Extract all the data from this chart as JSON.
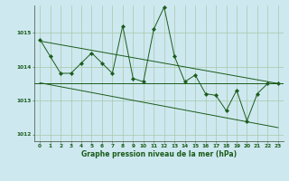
{
  "title": "Graphe pression niveau de la mer (hPa)",
  "background_color": "#cee8f0",
  "grid_color": "#a8c8a8",
  "line_color": "#1a5c1a",
  "spine_color": "#556655",
  "x_min": -0.5,
  "x_max": 23.5,
  "y_min": 1011.8,
  "y_max": 1015.8,
  "yticks": [
    1012,
    1013,
    1014,
    1015
  ],
  "xticks": [
    0,
    1,
    2,
    3,
    4,
    5,
    6,
    7,
    8,
    9,
    10,
    11,
    12,
    13,
    14,
    15,
    16,
    17,
    18,
    19,
    20,
    21,
    22,
    23
  ],
  "series1_x": [
    0,
    1,
    2,
    3,
    4,
    5,
    6,
    7,
    8,
    9,
    10,
    11,
    12,
    13,
    14,
    15,
    16,
    17,
    18,
    19,
    20,
    21,
    22,
    23
  ],
  "series1_y": [
    1014.8,
    1014.3,
    1013.8,
    1013.8,
    1014.1,
    1014.4,
    1014.1,
    1013.8,
    1015.2,
    1013.65,
    1013.55,
    1015.1,
    1015.75,
    1014.3,
    1013.55,
    1013.75,
    1013.2,
    1013.15,
    1012.7,
    1013.3,
    1012.4,
    1013.2,
    1013.5,
    1013.5
  ],
  "flat_line_y": 1013.52,
  "trend1_x0": 0,
  "trend1_y0": 1014.75,
  "trend1_x1": 23,
  "trend1_y1": 1013.5,
  "trend2_x0": 0,
  "trend2_y0": 1013.52,
  "trend2_x1": 23,
  "trend2_y1": 1012.2,
  "marker": "D",
  "markersize": 2.2,
  "linewidth": 0.7,
  "tick_fontsize": 4.2,
  "ylabel_fontsize": 4.2,
  "xlabel_fontsize": 5.5
}
